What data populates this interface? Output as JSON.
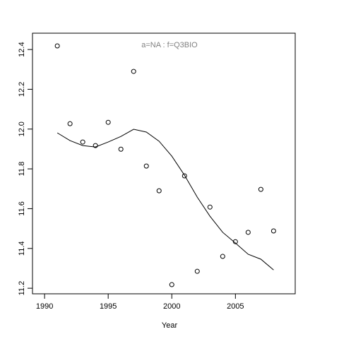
{
  "chart_data": {
    "type": "scatter",
    "annotation": "a=NA  :  f=Q3BIO",
    "x_label": "Year",
    "x": [
      1991,
      1992,
      1993,
      1994,
      1995,
      1996,
      1997,
      1998,
      1999,
      2000,
      2001,
      2002,
      2003,
      2004,
      2005,
      2006,
      2007,
      2008
    ],
    "values": [
      12.418,
      12.027,
      11.935,
      11.917,
      12.034,
      11.899,
      12.29,
      11.814,
      11.69,
      11.218,
      11.765,
      11.285,
      11.608,
      11.36,
      11.434,
      11.481,
      11.697,
      11.488
    ],
    "smooth": [
      11.981,
      11.942,
      11.917,
      11.91,
      11.935,
      11.963,
      11.999,
      11.985,
      11.939,
      11.864,
      11.768,
      11.658,
      11.562,
      11.481,
      11.427,
      11.371,
      11.346,
      11.292
    ],
    "xlim": [
      1989.05,
      2009.7
    ],
    "ylim": [
      11.172,
      12.482
    ],
    "xticks": [
      1990,
      1995,
      2000,
      2005
    ],
    "yticks": [
      {
        "value": 11.2,
        "label": "11.2"
      },
      {
        "value": 11.4,
        "label": "11.4"
      },
      {
        "value": 11.6,
        "label": "11.6"
      },
      {
        "value": 11.8,
        "label": "11.8"
      },
      {
        "value": 12.0,
        "label": "12.0"
      },
      {
        "value": 12.2,
        "label": "12.2"
      },
      {
        "value": 12.4,
        "label": "12.4"
      }
    ],
    "point_color": "#000000",
    "line_color": "#000000",
    "annotation_color": "#808080"
  }
}
